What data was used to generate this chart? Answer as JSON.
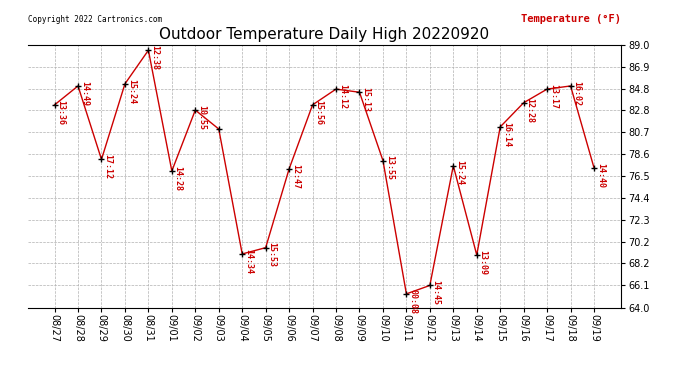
{
  "title": "Outdoor Temperature Daily High 20220920",
  "ylabel": "Temperature (°F)",
  "copyright": "Copyright 2022 Cartronics.com",
  "background_color": "#ffffff",
  "grid_color": "#b0b0b0",
  "line_color": "#cc0000",
  "marker_color": "#000000",
  "label_color": "#cc0000",
  "dates": [
    "08/27",
    "08/28",
    "08/29",
    "08/30",
    "08/31",
    "09/01",
    "09/02",
    "09/03",
    "09/04",
    "09/05",
    "09/06",
    "09/07",
    "09/08",
    "09/09",
    "09/10",
    "09/11",
    "09/12",
    "09/13",
    "09/14",
    "09/15",
    "09/16",
    "09/17",
    "09/18",
    "09/19"
  ],
  "values": [
    83.3,
    85.1,
    78.1,
    85.3,
    88.5,
    77.0,
    82.8,
    81.0,
    69.1,
    69.7,
    77.2,
    83.3,
    84.8,
    84.5,
    78.0,
    65.3,
    66.1,
    77.5,
    69.0,
    81.2,
    83.5,
    84.8,
    85.1,
    77.3
  ],
  "time_labels": [
    "13:36",
    "14:49",
    "17:12",
    "15:24",
    "12:38",
    "14:28",
    "10:55",
    "",
    "14:34",
    "15:53",
    "12:47",
    "15:56",
    "14:12",
    "15:13",
    "13:55",
    "00:08",
    "14:45",
    "15:24",
    "13:09",
    "16:14",
    "12:28",
    "13:17",
    "16:02",
    "14:40"
  ],
  "ylim": [
    64.0,
    89.0
  ],
  "yticks": [
    64.0,
    66.1,
    68.2,
    70.2,
    72.3,
    74.4,
    76.5,
    78.6,
    80.7,
    82.8,
    84.8,
    86.9,
    89.0
  ],
  "title_fontsize": 11,
  "tick_fontsize": 7,
  "label_fontsize": 6,
  "annot_fontsize": 6
}
